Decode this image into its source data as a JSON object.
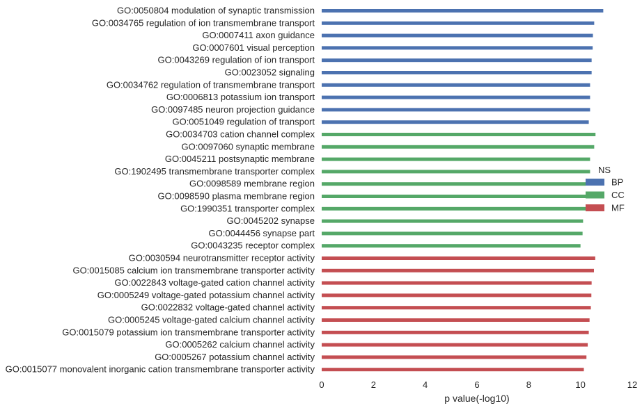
{
  "chart_data": {
    "type": "bar",
    "orientation": "horizontal",
    "xlabel": "p value(-log10)",
    "xlim": [
      0,
      12
    ],
    "xticks": [
      0,
      2,
      4,
      6,
      8,
      10,
      12
    ],
    "grid": false,
    "legend": {
      "title": "NS",
      "position": "right",
      "entries": [
        {
          "name": "BP",
          "color": "#4c72b0"
        },
        {
          "name": "CC",
          "color": "#55a868"
        },
        {
          "name": "MF",
          "color": "#c44e52"
        }
      ]
    },
    "series": [
      {
        "name": "BP",
        "color": "#4c72b0",
        "categories": [
          "GO:0050804 modulation of synaptic transmission",
          "GO:0034765 regulation of ion transmembrane transport",
          "GO:0007411 axon guidance",
          "GO:0007601 visual perception",
          "GO:0043269 regulation of ion transport",
          "GO:0023052 signaling",
          "GO:0034762 regulation of transmembrane transport",
          "GO:0006813 potassium ion transport",
          "GO:0097485 neuron projection guidance",
          "GO:0051049 regulation of transport"
        ],
        "values": [
          10.88,
          10.53,
          10.48,
          10.47,
          10.43,
          10.43,
          10.37,
          10.37,
          10.37,
          10.32
        ]
      },
      {
        "name": "CC",
        "color": "#55a868",
        "categories": [
          "GO:0034703 cation channel complex",
          "GO:0097060 synaptic membrane",
          "GO:0045211 postsynaptic membrane",
          "GO:1902495 transmembrane transporter complex",
          "GO:0098589 membrane region",
          "GO:0098590 plasma membrane region",
          "GO:1990351 transporter complex",
          "GO:0045202 synapse",
          "GO:0044456 synapse part",
          "GO:0043235 receptor complex"
        ],
        "values": [
          10.58,
          10.53,
          10.37,
          10.37,
          10.2,
          10.2,
          10.2,
          10.1,
          10.08,
          10.0
        ]
      },
      {
        "name": "MF",
        "color": "#c44e52",
        "categories": [
          "GO:0030594 neurotransmitter receptor activity",
          "GO:0015085 calcium ion transmembrane transporter activity",
          "GO:0022843 voltage-gated cation channel activity",
          "GO:0005249 voltage-gated potassium channel activity",
          "GO:0022832 voltage-gated channel activity",
          "GO:0005245 voltage-gated calcium channel activity",
          "GO:0015079 potassium ion transmembrane transporter activity",
          "GO:0005262 calcium channel activity",
          "GO:0005267 potassium channel activity",
          "GO:0015077 monovalent inorganic cation transmembrane transporter activity"
        ],
        "values": [
          10.57,
          10.52,
          10.43,
          10.42,
          10.4,
          10.35,
          10.32,
          10.28,
          10.23,
          10.13
        ]
      }
    ]
  }
}
